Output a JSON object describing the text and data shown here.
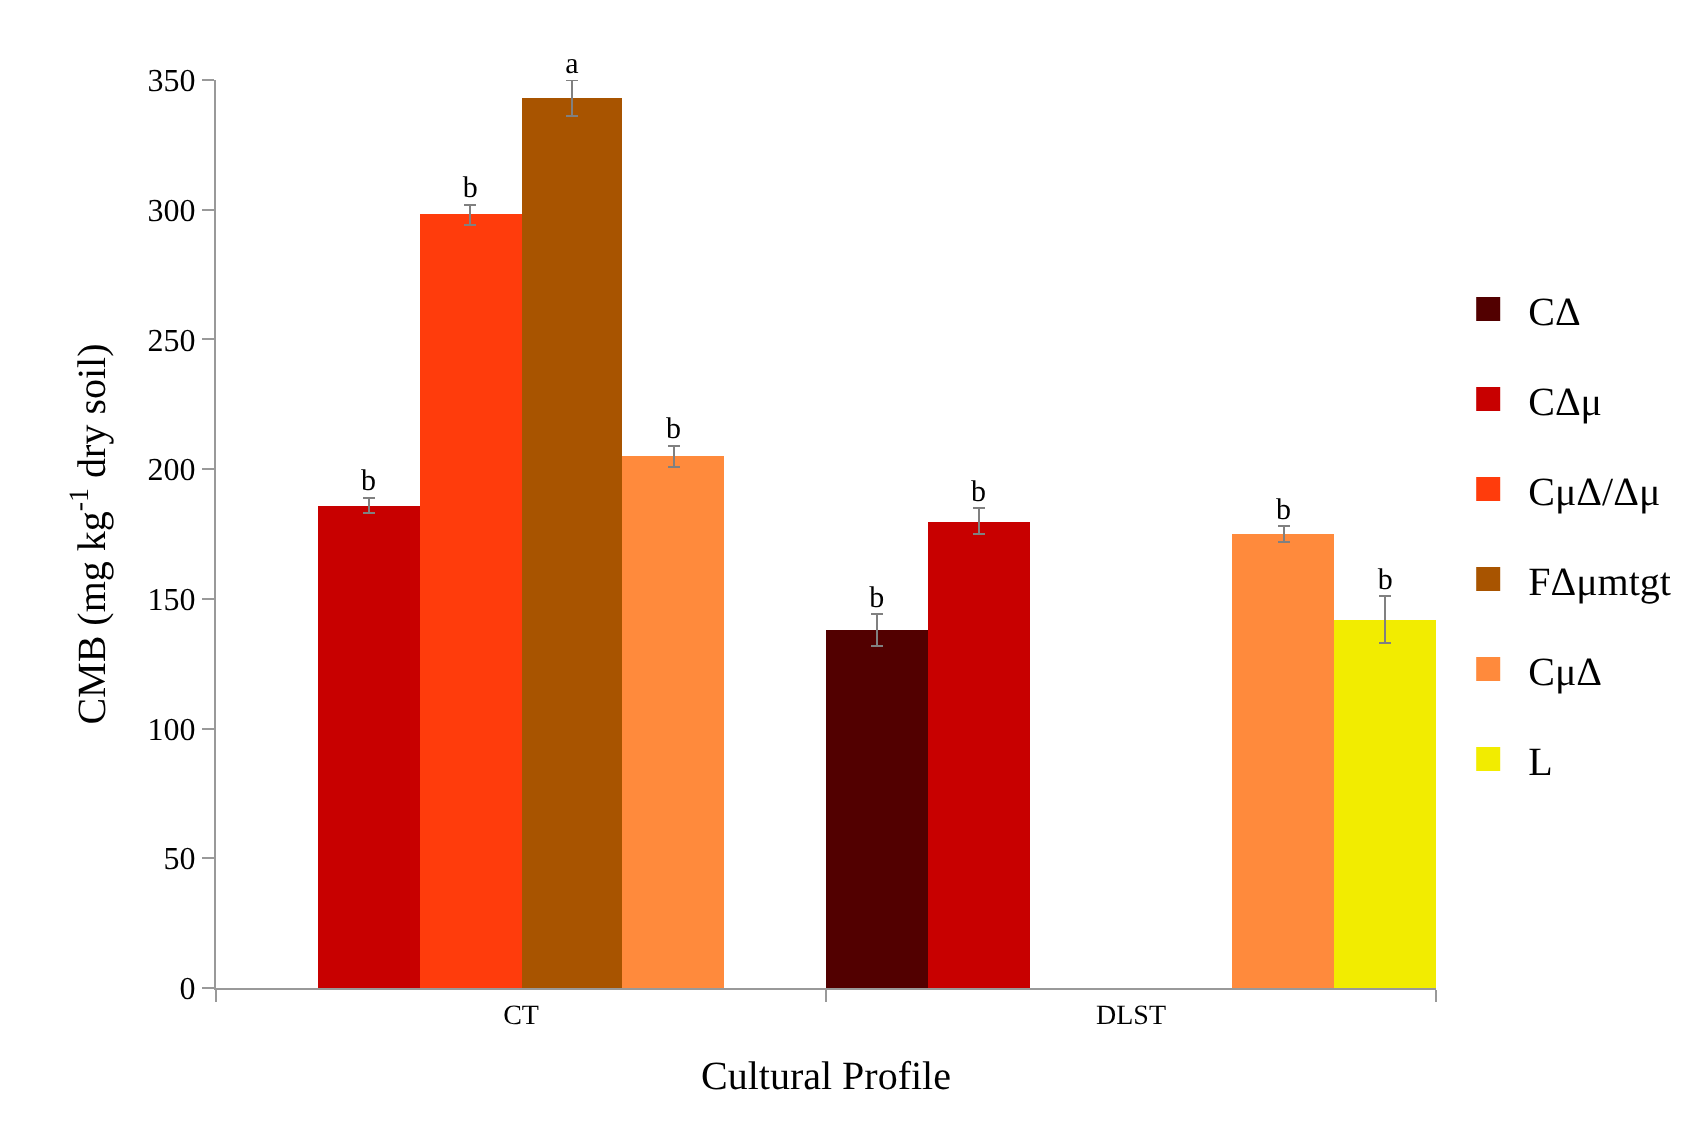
{
  "chart_data": {
    "type": "bar",
    "xlabel": "Cultural Profile",
    "ylabel": "CMB (mg kg$^{-1}$ dry soil)",
    "categories": [
      "CT",
      "DLST"
    ],
    "series": [
      {
        "name": "CΔ",
        "color": "#520000",
        "values": [
          null,
          138
        ],
        "errors": [
          null,
          6
        ],
        "value_labels": [
          null,
          "b"
        ]
      },
      {
        "name": "CΔμ",
        "color": "#c80000",
        "values": [
          186,
          180
        ],
        "errors": [
          3,
          5
        ],
        "value_labels": [
          "b",
          "b"
        ]
      },
      {
        "name": "CμΔ/Δμ",
        "color": "#ff3c0c",
        "values": [
          298,
          null
        ],
        "errors": [
          4,
          null
        ],
        "value_labels": [
          "b",
          null
        ]
      },
      {
        "name": "FΔμmtgt",
        "color": "#a85400",
        "values": [
          343,
          null
        ],
        "errors": [
          7,
          null
        ],
        "value_labels": [
          "a",
          null
        ]
      },
      {
        "name": "CμΔ",
        "color": "#ff8a3c",
        "values": [
          205,
          175
        ],
        "errors": [
          4,
          3
        ],
        "value_labels": [
          "b",
          "b"
        ]
      },
      {
        "name": "L",
        "color": "#f2ec00",
        "values": [
          null,
          142
        ],
        "errors": [
          null,
          9
        ],
        "value_labels": [
          null,
          "b"
        ]
      }
    ],
    "ylim": [
      0,
      350
    ],
    "yticks": [
      0,
      50,
      100,
      150,
      200,
      250,
      300,
      350
    ],
    "legend": "right"
  }
}
